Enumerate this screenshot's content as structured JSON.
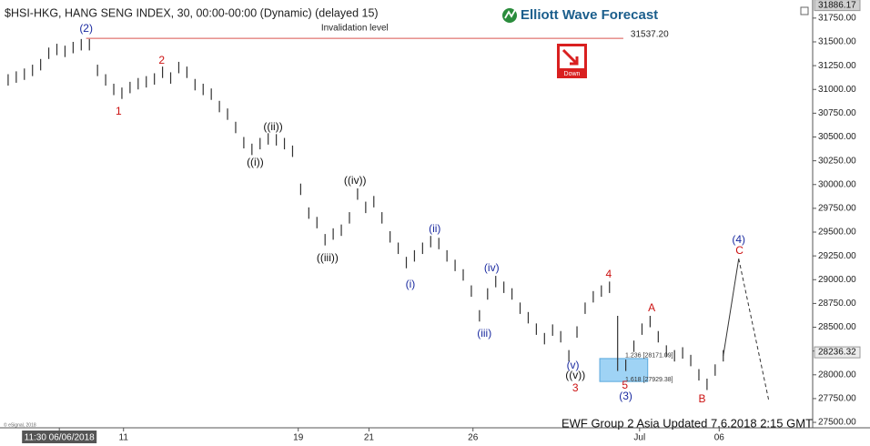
{
  "chart_data": {
    "type": "hl",
    "title": "$HSI-HKG, HANG SENG INDEX, 30, 00:00-00:00 (Dynamic) (delayed 15)",
    "logo": "Elliott Wave Forecast",
    "signal": "Down",
    "footer": "EWF Group 2 Asia Updated 7.6.2018 2:15 GMT",
    "copyright": "© eSignal, 2018",
    "color": "#333333",
    "high": [
      31160,
      31190,
      31220,
      31260,
      31320,
      31440,
      31480,
      31460,
      31500,
      31530,
      31530,
      31260,
      31160,
      31060,
      31020,
      31080,
      31120,
      31140,
      31170,
      31240,
      31180,
      31290,
      31240,
      31110,
      31060,
      31010,
      30880,
      30800,
      30660,
      30500,
      30430,
      30490,
      30540,
      30530,
      30490,
      30410,
      30010,
      29760,
      29660,
      29480,
      29540,
      29580,
      29710,
      29960,
      29820,
      29880,
      29710,
      29510,
      29390,
      29240,
      29310,
      29390,
      29460,
      29440,
      29310,
      29210,
      29110,
      28940,
      28680,
      28910,
      29040,
      28980,
      28910,
      28760,
      28660,
      28540,
      28440,
      28530,
      28460,
      28260,
      28510,
      28760,
      28880,
      28940,
      28980,
      28620,
      28160,
      28360,
      28540,
      28620,
      28460,
      28310,
      28260,
      28290,
      28210,
      28060,
      27960,
      28110,
      28260
    ],
    "low": [
      31040,
      31070,
      31100,
      31140,
      31200,
      31320,
      31360,
      31340,
      31380,
      31410,
      31410,
      31140,
      31040,
      30940,
      30900,
      30960,
      31000,
      31020,
      31050,
      31120,
      31060,
      31170,
      31120,
      30990,
      30940,
      30890,
      30760,
      30680,
      30540,
      30380,
      30310,
      30370,
      30420,
      30410,
      30370,
      30290,
      29890,
      29640,
      29540,
      29360,
      29420,
      29460,
      29590,
      29840,
      29700,
      29760,
      29590,
      29390,
      29270,
      29120,
      29190,
      29270,
      29340,
      29320,
      29190,
      29090,
      28990,
      28820,
      28560,
      28790,
      28920,
      28860,
      28790,
      28640,
      28540,
      28420,
      28320,
      28410,
      28340,
      28140,
      28390,
      28640,
      28760,
      28820,
      28860,
      28040,
      28040,
      28240,
      28420,
      28500,
      28340,
      28190,
      28140,
      28170,
      28090,
      27940,
      27840,
      27990,
      28140
    ],
    "projection": {
      "x": [
        89,
        90.9,
        94.6
      ],
      "values": [
        28200,
        29220,
        27730
      ]
    },
    "invalidation": {
      "label": "Invalidation level",
      "value": {
        "value": 31537.2,
        "label": "31537.20"
      },
      "x": [
        10.6,
        76.7
      ],
      "color": "#d9534f"
    },
    "fib_box": {
      "x": [
        73.8,
        79.7
      ],
      "high": 28171.09,
      "low": 27929.38,
      "labels": [
        "1.236 [28171.09]",
        "1.618 [27929.38]"
      ],
      "color": "#9fd3f5"
    },
    "price_markers": [
      31886.17,
      28236.32
    ],
    "annotations": [
      {
        "text": "(2)",
        "x": 10.6,
        "y": 31634,
        "color": "#1a2aa0"
      },
      {
        "text": "1",
        "x": 14.6,
        "y": 30763,
        "color": "#cc1111"
      },
      {
        "text": "2",
        "x": 19.9,
        "y": 31299,
        "color": "#cc1111"
      },
      {
        "text": "((i))",
        "x": 31.4,
        "y": 30227,
        "color": "#111111"
      },
      {
        "text": "((ii))",
        "x": 33.6,
        "y": 30600,
        "color": "#111111"
      },
      {
        "text": "((iii))",
        "x": 40.3,
        "y": 29222,
        "color": "#111111"
      },
      {
        "text": "((iv))",
        "x": 43.7,
        "y": 30036,
        "color": "#111111"
      },
      {
        "text": "(i)",
        "x": 50.5,
        "y": 28945,
        "color": "#1a2aa0"
      },
      {
        "text": "(ii)",
        "x": 53.5,
        "y": 29529,
        "color": "#1a2aa0"
      },
      {
        "text": "(iii)",
        "x": 59.6,
        "y": 28429,
        "color": "#1a2aa0"
      },
      {
        "text": "(iv)",
        "x": 60.5,
        "y": 29117,
        "color": "#1a2aa0"
      },
      {
        "text": "(v)",
        "x": 70.5,
        "y": 28093,
        "color": "#1a2aa0"
      },
      {
        "text": "((v))",
        "x": 70.8,
        "y": 27988,
        "color": "#111111"
      },
      {
        "text": "3",
        "x": 70.8,
        "y": 27854,
        "color": "#cc1111"
      },
      {
        "text": "4",
        "x": 74.9,
        "y": 29050,
        "color": "#cc1111"
      },
      {
        "text": "5",
        "x": 76.9,
        "y": 27883,
        "color": "#cc1111"
      },
      {
        "text": "(3)",
        "x": 77.0,
        "y": 27768,
        "color": "#1a2aa0"
      },
      {
        "text": "A",
        "x": 80.2,
        "y": 28696,
        "color": "#cc1111"
      },
      {
        "text": "B",
        "x": 86.4,
        "y": 27739,
        "color": "#cc1111"
      },
      {
        "text": "(4)",
        "x": 90.9,
        "y": 29414,
        "color": "#1a2aa0"
      },
      {
        "text": "C",
        "x": 91.0,
        "y": 29299,
        "color": "#cc1111"
      }
    ],
    "xlim": [
      0,
      100
    ],
    "xticks": [
      {
        "value": 7.3,
        "label": "11:30 06/06/2018"
      },
      {
        "value": 15.2,
        "label": "11"
      },
      {
        "value": 36.7,
        "label": "19"
      },
      {
        "value": 45.4,
        "label": "21"
      },
      {
        "value": 58.2,
        "label": "26"
      },
      {
        "value": 78.7,
        "label": "Jul"
      },
      {
        "value": 88.5,
        "label": "06"
      }
    ],
    "ylim": [
      27443,
      31940
    ],
    "yticks": [
      {
        "value": 27500,
        "label": "27500.00"
      },
      {
        "value": 27750,
        "label": "27750.00"
      },
      {
        "value": 28000,
        "label": "28000.00"
      },
      {
        "value": 28250,
        "label": "28250.00"
      },
      {
        "value": 28500,
        "label": "28500.00"
      },
      {
        "value": 28750,
        "label": "28750.00"
      },
      {
        "value": 29000,
        "label": "29000.00"
      },
      {
        "value": 29250,
        "label": "29250.00"
      },
      {
        "value": 29500,
        "label": "29500.00"
      },
      {
        "value": 29750,
        "label": "29750.00"
      },
      {
        "value": 30000,
        "label": "30000.00"
      },
      {
        "value": 30250,
        "label": "30250.00"
      },
      {
        "value": 30500,
        "label": "30500.00"
      },
      {
        "value": 30750,
        "label": "30750.00"
      },
      {
        "value": 31000,
        "label": "31000.00"
      },
      {
        "value": 31250,
        "label": "31250.00"
      },
      {
        "value": 31500,
        "label": "31500.00"
      },
      {
        "value": 31750,
        "label": "31750.00"
      }
    ],
    "grid": false
  }
}
